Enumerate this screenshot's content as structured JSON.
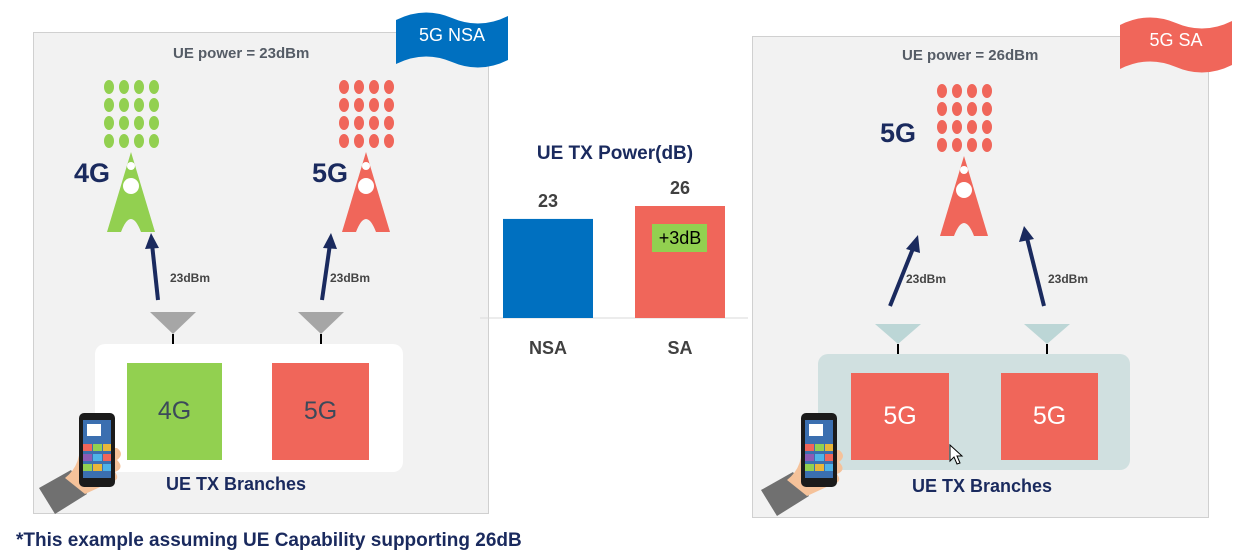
{
  "nsa": {
    "flag": "5G NSA",
    "flag_color": "#0070c0",
    "ue_power": "UE power = 23dBm",
    "tower_4g_label": "4G",
    "tower_5g_label": "5G",
    "link_4g": "23dBm",
    "link_5g": "23dBm",
    "branch_4g": "4G",
    "branch_5g": "5G",
    "branches_title": "UE TX Branches"
  },
  "sa": {
    "flag": "5G SA",
    "flag_color": "#f0665a",
    "ue_power": "UE power = 26dBm",
    "tower_label": "5G",
    "link_1": "23dBm",
    "link_2": "23dBm",
    "branch_1": "5G",
    "branch_2": "5G",
    "branches_title": "UE TX Branches"
  },
  "colors": {
    "green": "#92d050",
    "red": "#f0665a",
    "blue": "#0070c0",
    "navy": "#1a2a5e"
  },
  "chart_data": {
    "type": "bar",
    "title": "UE TX Power(dB)",
    "categories": [
      "NSA",
      "SA"
    ],
    "values": [
      23,
      26
    ],
    "value_labels": [
      "23",
      "26"
    ],
    "colors": [
      "#0070c0",
      "#f0665a"
    ],
    "annotation": "+3dB",
    "ylim": [
      0,
      26
    ]
  },
  "footnote": "*This example assuming UE Capability supporting 26dB"
}
